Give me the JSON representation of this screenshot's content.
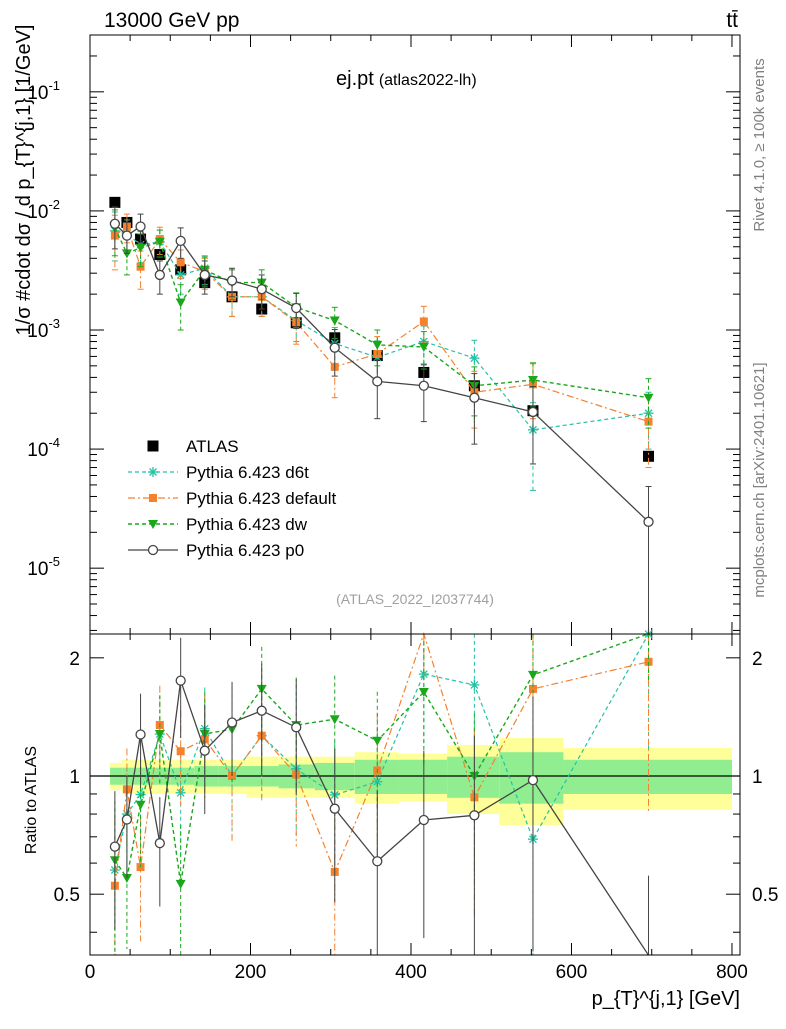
{
  "header": {
    "energy_label": "13000 GeV pp",
    "process_label": "tt̄",
    "observable": "ej.pt",
    "analysis_tag": "(atlas2022-lh)",
    "watermark_id": "(ATLAS_2022_I2037744)",
    "side_rivet": "Rivet 4.1.0, ≥ 100k events",
    "side_site": "mcplots.cern.ch [arXiv:2401.10621]"
  },
  "axes": {
    "ylabel_main": "1/σ #cdot dσ / d p_{T}^{j,1} [1/GeV]",
    "ylabel_ratio": "Ratio to ATLAS",
    "xlabel": "p_{T}^{j,1} [GeV]",
    "xlim": [
      0,
      810
    ],
    "ylim_main": [
      2.8e-06,
      0.3
    ],
    "ylim_ratio": [
      0.35,
      2.3
    ],
    "x_ticks": [
      "0",
      "200",
      "400",
      "600",
      "800"
    ],
    "main_y_ticks": [
      "10^-1",
      "10^-2",
      "10^-3",
      "10^-4",
      "10^-5"
    ],
    "ratio_y_ticks": [
      "0.5",
      "1",
      "2"
    ]
  },
  "legend": [
    {
      "key": "atlas",
      "label": "ATLAS"
    },
    {
      "key": "d6t",
      "label": "Pythia 6.423 d6t"
    },
    {
      "key": "default",
      "label": "Pythia 6.423 default"
    },
    {
      "key": "dw",
      "label": "Pythia 6.423 dw"
    },
    {
      "key": "p0",
      "label": "Pythia 6.423 p0"
    }
  ],
  "colors": {
    "atlas": "#000000",
    "d6t": "#22c3a4",
    "default": "#f5812c",
    "dw": "#1aa81a",
    "p0": "#444444",
    "band_inner": "#90ee90",
    "band_outer": "#ffff99"
  },
  "chart_data": {
    "type": "scatter",
    "title": "ej.pt (atlas2022-lh)",
    "x_units": "GeV",
    "bin_edges": [
      25,
      40,
      55,
      75,
      100,
      130,
      160,
      195,
      235,
      280,
      330,
      385,
      445,
      510,
      590,
      800
    ],
    "x": [
      31,
      46,
      63,
      87,
      113,
      143,
      177,
      214,
      257,
      305,
      358,
      416,
      479,
      552,
      696
    ],
    "series": [
      {
        "key": "atlas",
        "name": "ATLAS",
        "y": [
          0.0118,
          0.008,
          0.0058,
          0.0043,
          0.0032,
          0.0025,
          0.0019,
          0.0015,
          0.00115,
          0.00086,
          0.00061,
          0.00044,
          0.00034,
          0.00021,
          8.7e-05
        ],
        "band_inner": [
          0.05,
          0.05,
          0.05,
          0.05,
          0.05,
          0.06,
          0.06,
          0.06,
          0.07,
          0.08,
          0.1,
          0.1,
          0.12,
          0.15,
          0.1
        ],
        "band_outer": [
          0.08,
          0.1,
          0.1,
          0.1,
          0.1,
          0.1,
          0.1,
          0.12,
          0.12,
          0.12,
          0.15,
          0.14,
          0.2,
          0.25,
          0.18
        ]
      },
      {
        "key": "d6t",
        "name": "Pythia 6.423 d6t",
        "y": [
          0.0068,
          0.0064,
          0.0052,
          0.0055,
          0.0029,
          0.0033,
          0.0019,
          0.0019,
          0.0012,
          0.00077,
          0.00059,
          0.0008,
          0.00058,
          0.000145,
          0.0002
        ],
        "err": [
          0.003,
          0.002,
          0.0015,
          0.0014,
          0.0009,
          0.0009,
          0.0006,
          0.0006,
          0.0004,
          0.00028,
          0.00022,
          0.00028,
          0.00024,
          0.0001,
          0.0001
        ]
      },
      {
        "key": "default",
        "name": "Pythia 6.423 default",
        "y": [
          0.0062,
          0.0074,
          0.0034,
          0.0058,
          0.0037,
          0.0031,
          0.0019,
          0.0019,
          0.00116,
          0.00049,
          0.00063,
          0.00118,
          0.0003,
          0.00035,
          0.00017
        ],
        "err": [
          0.003,
          0.002,
          0.0012,
          0.0015,
          0.001,
          0.0009,
          0.0006,
          0.0006,
          0.0004,
          0.00022,
          0.00025,
          0.0004,
          0.00015,
          0.00017,
          0.0001
        ]
      },
      {
        "key": "dw",
        "name": "Pythia 6.423 dw",
        "y": [
          0.0072,
          0.0044,
          0.0049,
          0.0055,
          0.0017,
          0.0032,
          0.0025,
          0.0025,
          0.00155,
          0.0012,
          0.00075,
          0.00072,
          0.00034,
          0.00038,
          0.00027
        ],
        "err": [
          0.003,
          0.0015,
          0.0015,
          0.0014,
          0.0007,
          0.0009,
          0.0007,
          0.0007,
          0.0005,
          0.00035,
          0.00025,
          0.00025,
          0.00015,
          0.00015,
          0.00012
        ]
      },
      {
        "key": "p0",
        "name": "Pythia 6.423 p0",
        "y": [
          0.0078,
          0.0062,
          0.0074,
          0.0029,
          0.0056,
          0.0029,
          0.0026,
          0.0022,
          0.00153,
          0.00071,
          0.00037,
          0.00034,
          0.00027,
          0.000205,
          2.45e-05
        ],
        "err": [
          0.003,
          0.0018,
          0.002,
          0.0009,
          0.0016,
          0.0009,
          0.0007,
          0.0007,
          0.0005,
          0.0003,
          0.00019,
          0.00017,
          0.00016,
          0.00013,
          2.4e-05
        ]
      }
    ]
  }
}
